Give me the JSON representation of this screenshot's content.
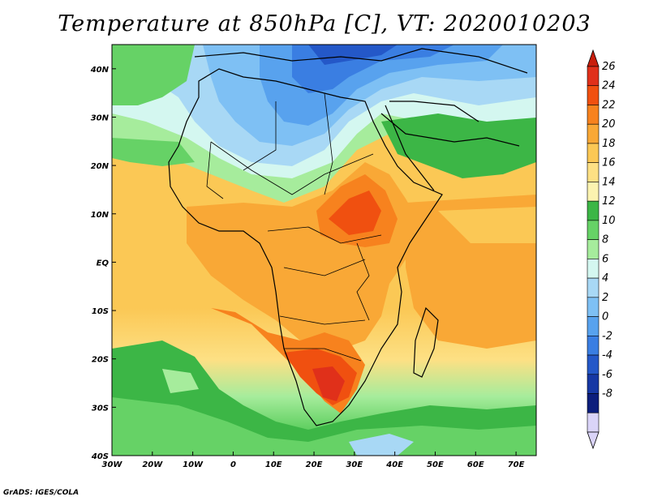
{
  "title": "Temperature at 850hPa [C], VT: 2020010203",
  "credit": "GrADS: IGES/COLA",
  "map": {
    "lon_range": [
      -30,
      75
    ],
    "lat_range": [
      -40,
      45
    ],
    "lon_ticks": [
      {
        "value": -30,
        "label": "30W"
      },
      {
        "value": -20,
        "label": "20W"
      },
      {
        "value": -10,
        "label": "10W"
      },
      {
        "value": 0,
        "label": "0"
      },
      {
        "value": 10,
        "label": "10E"
      },
      {
        "value": 20,
        "label": "20E"
      },
      {
        "value": 30,
        "label": "30E"
      },
      {
        "value": 40,
        "label": "40E"
      },
      {
        "value": 50,
        "label": "50E"
      },
      {
        "value": 60,
        "label": "60E"
      },
      {
        "value": 70,
        "label": "70E"
      }
    ],
    "lat_ticks": [
      {
        "value": 40,
        "label": "40N"
      },
      {
        "value": 30,
        "label": "30N"
      },
      {
        "value": 20,
        "label": "20N"
      },
      {
        "value": 10,
        "label": "10N"
      },
      {
        "value": 0,
        "label": "EQ"
      },
      {
        "value": -10,
        "label": "10S"
      },
      {
        "value": -20,
        "label": "20S"
      },
      {
        "value": -30,
        "label": "30S"
      },
      {
        "value": -40,
        "label": "40S"
      }
    ]
  },
  "colorbar": {
    "levels": [
      "26",
      "24",
      "22",
      "20",
      "18",
      "16",
      "14",
      "12",
      "10",
      "8",
      "6",
      "4",
      "2",
      "0",
      "-2",
      "-4",
      "-6",
      "-8"
    ],
    "colors": [
      "#e0301a",
      "#f05010",
      "#f7821e",
      "#f9a836",
      "#fbc855",
      "#fde084",
      "#fbf3b0",
      "#3cb646",
      "#66d266",
      "#a6ec9c",
      "#d4f7f0",
      "#a8d8f5",
      "#7ec0f4",
      "#58a2ee",
      "#3a7ee2",
      "#2458c8",
      "#1638a4",
      "#0c1e7c",
      "#dad4f8"
    ],
    "top_cap_color": "#c81e0c",
    "bottom_cap_color": "#dad4f8"
  }
}
